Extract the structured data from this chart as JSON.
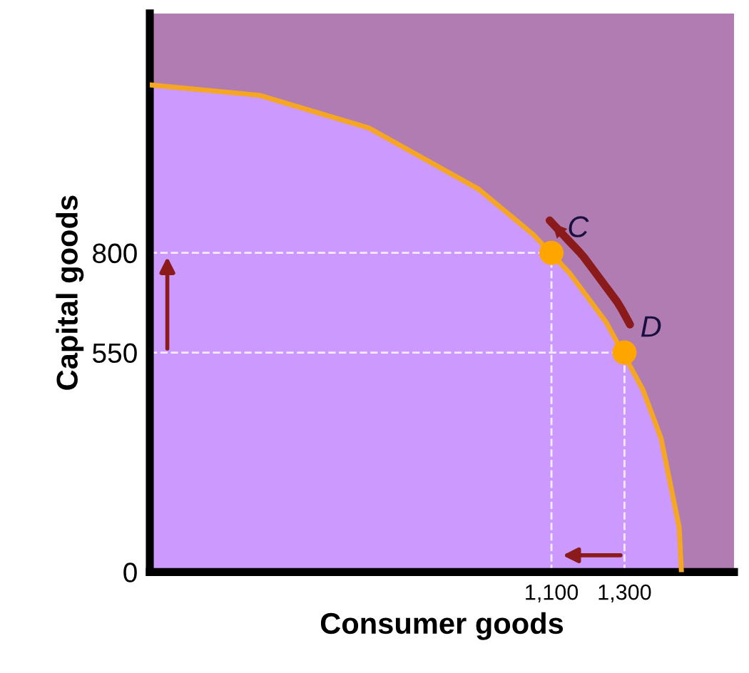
{
  "chart_data": {
    "type": "area",
    "xlabel": "Consumer goods",
    "ylabel": "Capital goods",
    "x": [
      0,
      300,
      600,
      900,
      1050,
      1150,
      1250,
      1350,
      1400,
      1450,
      1456
    ],
    "series": [
      {
        "color": "#cc99ff",
        "values": [
          1221,
          1195,
          1113,
          960,
          846,
          749,
          626,
          458,
          336,
          111,
          0
        ]
      },
      {
        "type": "scatter",
        "color": "#ffa500",
        "x": [
          1100,
          1300
        ],
        "values": [
          800,
          550
        ]
      }
    ],
    "annotations": [
      {
        "text": "C",
        "x": 1100,
        "y": 800
      },
      {
        "text": "D",
        "x": 1300,
        "y": 550
      }
    ],
    "ref_lines": [
      {
        "axis": "y",
        "value": 800,
        "label": null,
        "color": "#ffffff",
        "line_style": "dashed"
      },
      {
        "axis": "y",
        "value": 550,
        "label": null,
        "color": "#ffffff",
        "line_style": "dashed"
      },
      {
        "axis": "x",
        "value": 1100,
        "label": null,
        "color": "#ffffff",
        "line_style": "dashed"
      },
      {
        "axis": "x",
        "value": 1300,
        "label": null,
        "color": "#ffffff",
        "line_style": "dashed"
      }
    ],
    "bands": [
      {
        "axis": "y",
        "from": 0,
        "to": 1400,
        "label": null,
        "color": "#b07cb2"
      }
    ],
    "xlim": [
      0,
      1600
    ],
    "ylim": [
      0,
      1400
    ],
    "xticks": [
      {
        "value": 0,
        "label": null
      },
      {
        "value": 1100,
        "label": "1,100"
      },
      {
        "value": 1300,
        "label": "1,300"
      }
    ],
    "yticks": [
      0,
      550,
      800
    ],
    "grid": false,
    "legend": false
  }
}
